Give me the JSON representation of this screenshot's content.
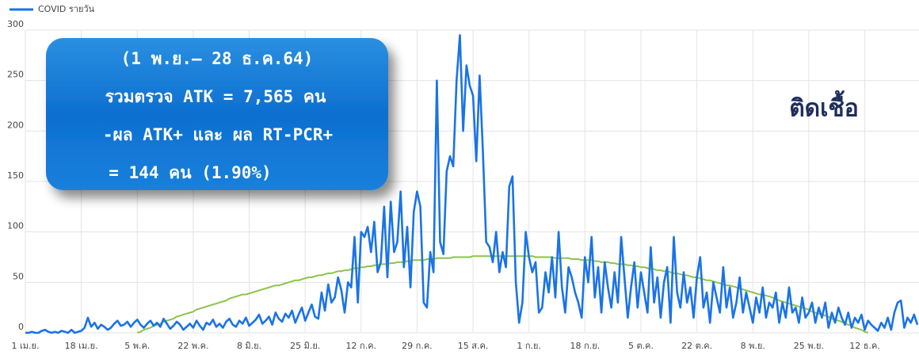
{
  "chart_data": {
    "type": "line",
    "categories": [
      "1 เม.ย.",
      null,
      null,
      null,
      null,
      null,
      null,
      null,
      null,
      null,
      null,
      null,
      null,
      null,
      null,
      null,
      null,
      "18 เม.ย.",
      null,
      null,
      null,
      null,
      null,
      null,
      null,
      null,
      null,
      null,
      null,
      null,
      null,
      null,
      null,
      null,
      "5 พ.ค.",
      null,
      null,
      null,
      null,
      null,
      null,
      null,
      null,
      null,
      null,
      null,
      null,
      null,
      null,
      null,
      null,
      "22 พ.ค.",
      null,
      null,
      null,
      null,
      null,
      null,
      null,
      null,
      null,
      null,
      null,
      null,
      null,
      null,
      null,
      null,
      "8 มิ.ย.",
      null,
      null,
      null,
      null,
      null,
      null,
      null,
      null,
      null,
      null,
      null,
      null,
      null,
      null,
      null,
      null,
      "25 มิ.ย.",
      null,
      null,
      null,
      null,
      null,
      null,
      null,
      null,
      null,
      null,
      null,
      null,
      null,
      null,
      null,
      null,
      "12 ก.ค.",
      null,
      null,
      null,
      null,
      null,
      null,
      null,
      null,
      null,
      null,
      null,
      null,
      null,
      null,
      null,
      null,
      "29 ก.ค.",
      null,
      null,
      null,
      null,
      null,
      null,
      null,
      null,
      null,
      null,
      null,
      null,
      null,
      null,
      null,
      null,
      "15 ส.ค.",
      null,
      null,
      null,
      null,
      null,
      null,
      null,
      null,
      null,
      null,
      null,
      null,
      null,
      null,
      null,
      null,
      "1 ก.ย.",
      null,
      null,
      null,
      null,
      null,
      null,
      null,
      null,
      null,
      null,
      null,
      null,
      null,
      null,
      null,
      null,
      "18 ก.ย.",
      null,
      null,
      null,
      null,
      null,
      null,
      null,
      null,
      null,
      null,
      null,
      null,
      null,
      null,
      null,
      null,
      "5 ต.ค.",
      null,
      null,
      null,
      null,
      null,
      null,
      null,
      null,
      null,
      null,
      null,
      null,
      null,
      null,
      null,
      null,
      "22 ต.ค.",
      null,
      null,
      null,
      null,
      null,
      null,
      null,
      null,
      null,
      null,
      null,
      null,
      null,
      null,
      null,
      null,
      "8 พ.ย.",
      null,
      null,
      null,
      null,
      null,
      null,
      null,
      null,
      null,
      null,
      null,
      null,
      null,
      null,
      null,
      null,
      "25 พ.ย.",
      null,
      null,
      null,
      null,
      null,
      null,
      null,
      null,
      null,
      null,
      null,
      null,
      null,
      null,
      null,
      null,
      "12 ธ.ค.",
      null,
      null,
      null,
      null,
      null,
      null,
      null,
      null,
      null,
      null,
      null,
      null,
      null,
      null,
      null,
      null
    ],
    "series": [
      {
        "name": "COVID รายวัน",
        "color": "#1a73e8",
        "values": [
          0,
          0,
          1,
          0,
          0,
          2,
          3,
          1,
          0,
          1,
          0,
          2,
          1,
          0,
          3,
          0,
          1,
          2,
          5,
          15,
          6,
          10,
          4,
          8,
          6,
          3,
          5,
          9,
          12,
          7,
          8,
          11,
          6,
          10,
          13,
          8,
          5,
          9,
          12,
          7,
          10,
          6,
          14,
          9,
          4,
          7,
          11,
          8,
          3,
          6,
          9,
          5,
          12,
          7,
          3,
          10,
          8,
          13,
          6,
          9,
          5,
          11,
          14,
          8,
          6,
          12,
          9,
          15,
          7,
          10,
          13,
          18,
          9,
          12,
          16,
          8,
          20,
          14,
          11,
          19,
          15,
          22,
          10,
          18,
          25,
          12,
          20,
          28,
          16,
          14,
          40,
          22,
          48,
          30,
          35,
          55,
          42,
          20,
          50,
          45,
          95,
          30,
          100,
          95,
          105,
          80,
          110,
          60,
          70,
          125,
          55,
          130,
          80,
          90,
          140,
          65,
          105,
          45,
          120,
          140,
          125,
          30,
          25,
          80,
          60,
          250,
          90,
          78,
          160,
          175,
          165,
          250,
          295,
          200,
          265,
          245,
          235,
          170,
          255,
          180,
          90,
          85,
          70,
          100,
          60,
          80,
          65,
          145,
          155,
          50,
          10,
          30,
          100,
          75,
          60,
          70,
          20,
          25,
          60,
          40,
          75,
          35,
          100,
          45,
          20,
          65,
          55,
          40,
          30,
          15,
          75,
          50,
          95,
          35,
          65,
          20,
          70,
          45,
          25,
          60,
          30,
          95,
          55,
          15,
          45,
          70,
          25,
          60,
          40,
          20,
          85,
          30,
          55,
          15,
          50,
          65,
          10,
          95,
          40,
          25,
          60,
          30,
          45,
          15,
          55,
          75,
          25,
          40,
          10,
          50,
          35,
          20,
          65,
          25,
          45,
          15,
          30,
          55,
          20,
          40,
          25,
          10,
          35,
          20,
          45,
          15,
          30,
          25,
          40,
          10,
          30,
          15,
          45,
          20,
          25,
          10,
          35,
          15,
          20,
          30,
          10,
          25,
          15,
          30,
          5,
          20,
          10,
          25,
          15,
          8,
          20,
          5,
          15,
          10,
          18,
          3,
          12,
          8,
          5,
          2,
          10,
          5,
          15,
          3,
          20,
          30,
          32,
          5,
          15,
          10,
          18,
          8
        ]
      },
      {
        "color": "#8bc34a",
        "values": [
          null,
          null,
          null,
          null,
          null,
          null,
          null,
          null,
          null,
          null,
          null,
          null,
          null,
          null,
          null,
          null,
          null,
          null,
          null,
          null,
          null,
          null,
          null,
          null,
          null,
          null,
          null,
          null,
          null,
          null,
          null,
          null,
          null,
          null,
          0,
          1,
          3,
          4,
          5,
          7,
          8,
          9,
          11,
          12,
          13,
          14,
          16,
          17,
          18,
          19,
          20,
          21,
          23,
          24,
          25,
          26,
          27,
          28,
          29,
          30,
          31,
          32,
          34,
          35,
          36,
          37,
          38,
          38,
          39,
          40,
          41,
          42,
          43,
          44,
          45,
          46,
          47,
          47,
          48,
          49,
          50,
          51,
          52,
          52,
          53,
          54,
          55,
          55,
          56,
          57,
          57,
          58,
          59,
          59,
          60,
          61,
          61,
          62,
          62,
          63,
          64,
          64,
          65,
          65,
          66,
          66,
          67,
          67,
          68,
          68,
          68,
          69,
          69,
          70,
          70,
          70,
          71,
          71,
          72,
          72,
          72,
          72,
          73,
          73,
          73,
          74,
          74,
          74,
          74,
          74,
          75,
          75,
          75,
          75,
          75,
          75,
          76,
          76,
          76,
          76,
          76,
          76,
          76,
          76,
          76,
          76,
          76,
          76,
          76,
          76,
          76,
          76,
          76,
          76,
          76,
          75,
          75,
          75,
          75,
          75,
          75,
          74,
          74,
          74,
          74,
          74,
          73,
          73,
          73,
          72,
          72,
          72,
          72,
          71,
          71,
          70,
          70,
          70,
          69,
          69,
          68,
          68,
          68,
          67,
          67,
          66,
          66,
          65,
          65,
          64,
          64,
          63,
          62,
          62,
          61,
          61,
          60,
          59,
          59,
          58,
          57,
          57,
          56,
          55,
          55,
          54,
          53,
          52,
          52,
          51,
          50,
          49,
          48,
          47,
          47,
          46,
          45,
          44,
          43,
          42,
          41,
          40,
          39,
          38,
          38,
          37,
          36,
          35,
          34,
          32,
          31,
          30,
          29,
          28,
          27,
          26,
          25,
          24,
          23,
          21,
          20,
          19,
          18,
          17,
          16,
          14,
          13,
          12,
          11,
          9,
          8,
          7,
          5,
          4,
          3,
          1,
          0,
          null,
          null,
          null,
          null,
          null,
          null,
          null,
          null,
          null,
          null,
          null,
          null,
          null,
          null,
          null
        ]
      }
    ],
    "ylim": [
      0,
      300
    ],
    "yticks": [
      0,
      50,
      100,
      150,
      200,
      250,
      300
    ],
    "grid": true,
    "legend": "top-left",
    "note_lines": [
      "(1 พ.ย.– 28 ธ.ค.64)",
      "รวมตรวจ ATK   = 7,565 คน",
      "-ผล ATK+ และ ผล RT-PCR+",
      "= 144 คน (1.90%)"
    ],
    "annotation": "ติดเชื้อ"
  }
}
